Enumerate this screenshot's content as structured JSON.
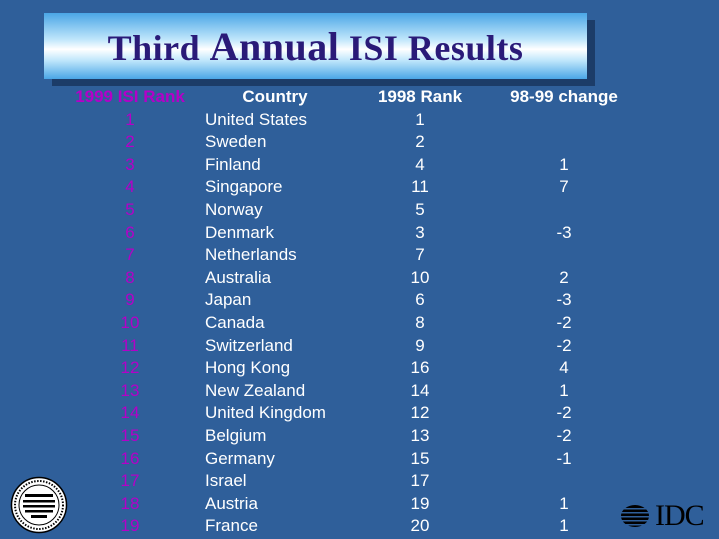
{
  "title": {
    "part1": "Third ",
    "part2": "Annual",
    "part3": " ISI Results"
  },
  "headers": [
    "1999 ISI Rank",
    "Country",
    "1998 Rank",
    "98-99 change"
  ],
  "rows": [
    [
      "1",
      "United States",
      "1",
      ""
    ],
    [
      "2",
      "Sweden",
      "2",
      ""
    ],
    [
      "3",
      "Finland",
      "4",
      "1"
    ],
    [
      "4",
      "Singapore",
      "11",
      "7"
    ],
    [
      "5",
      "Norway",
      "5",
      ""
    ],
    [
      "6",
      "Denmark",
      "3",
      "-3"
    ],
    [
      "7",
      "Netherlands",
      "7",
      ""
    ],
    [
      "8",
      "Australia",
      "10",
      "2"
    ],
    [
      "9",
      "Japan",
      "6",
      "-3"
    ],
    [
      "10",
      "Canada",
      "8",
      "-2"
    ],
    [
      "11",
      "Switzerland",
      "9",
      "-2"
    ],
    [
      "12",
      "Hong Kong",
      "16",
      "4"
    ],
    [
      "13",
      "New Zealand",
      "14",
      "1"
    ],
    [
      "14",
      "United Kingdom",
      "12",
      "-2"
    ],
    [
      "15",
      "Belgium",
      "13",
      "-2"
    ],
    [
      "16",
      "Germany",
      "15",
      "-1"
    ],
    [
      "17",
      "Israel",
      "17",
      ""
    ],
    [
      "18",
      "Austria",
      "19",
      "1"
    ],
    [
      "19",
      "France",
      "20",
      "1"
    ]
  ],
  "logo": {
    "text": "IDC"
  },
  "colors": {
    "background": "#2f5f9a",
    "rank": "#b400c8",
    "title": "#2a1a78"
  }
}
